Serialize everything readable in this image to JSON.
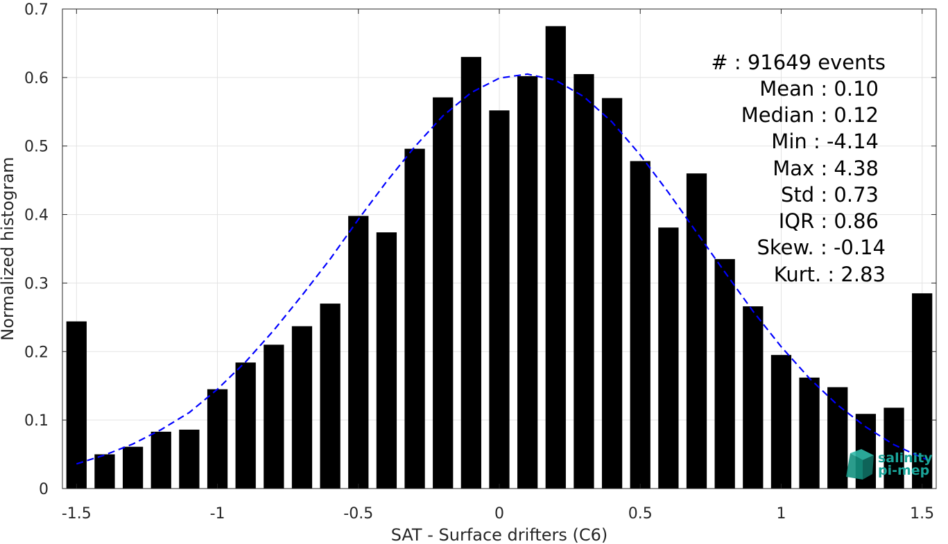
{
  "chart_data": {
    "type": "bar",
    "xlabel": "SAT - Surface drifters (C6)",
    "ylabel": "Normalized histogram",
    "xlim": [
      -1.55,
      1.55
    ],
    "ylim": [
      0,
      0.7
    ],
    "xticks": [
      -1.5,
      -1,
      -0.5,
      0,
      0.5,
      1,
      1.5
    ],
    "xtick_labels": [
      "-1.5",
      "-1",
      "-0.5",
      "0",
      "0.5",
      "1",
      "1.5"
    ],
    "yticks": [
      0,
      0.1,
      0.2,
      0.3,
      0.4,
      0.5,
      0.6,
      0.7
    ],
    "ytick_labels": [
      "0",
      "0.1",
      "0.2",
      "0.3",
      "0.4",
      "0.5",
      "0.6",
      "0.7"
    ],
    "grid": true,
    "bar_color": "#000000",
    "curve_color": "#0000ff",
    "x": [
      -1.5,
      -1.4,
      -1.3,
      -1.2,
      -1.1,
      -1.0,
      -0.9,
      -0.8,
      -0.7,
      -0.6,
      -0.5,
      -0.4,
      -0.3,
      -0.2,
      -0.1,
      0.0,
      0.1,
      0.2,
      0.3,
      0.4,
      0.5,
      0.6,
      0.7,
      0.8,
      0.9,
      1.0,
      1.1,
      1.2,
      1.3,
      1.4,
      1.5
    ],
    "values": [
      0.244,
      0.05,
      0.061,
      0.083,
      0.086,
      0.145,
      0.184,
      0.21,
      0.237,
      0.27,
      0.398,
      0.374,
      0.496,
      0.571,
      0.63,
      0.552,
      0.602,
      0.675,
      0.605,
      0.57,
      0.478,
      0.381,
      0.46,
      0.335,
      0.266,
      0.195,
      0.162,
      0.148,
      0.109,
      0.118,
      0.285
    ],
    "fit_curve": {
      "style": "dashed",
      "x": [
        -1.5,
        -1.4,
        -1.3,
        -1.2,
        -1.1,
        -1.0,
        -0.9,
        -0.8,
        -0.7,
        -0.6,
        -0.5,
        -0.4,
        -0.3,
        -0.2,
        -0.1,
        0.0,
        0.1,
        0.2,
        0.3,
        0.4,
        0.5,
        0.6,
        0.7,
        0.8,
        0.9,
        1.0,
        1.1,
        1.2,
        1.3,
        1.4,
        1.5,
        1.52
      ],
      "y": [
        0.036,
        0.049,
        0.065,
        0.086,
        0.111,
        0.145,
        0.185,
        0.231,
        0.282,
        0.335,
        0.393,
        0.448,
        0.499,
        0.544,
        0.578,
        0.599,
        0.605,
        0.596,
        0.572,
        0.535,
        0.487,
        0.432,
        0.374,
        0.316,
        0.259,
        0.207,
        0.161,
        0.122,
        0.09,
        0.064,
        0.045,
        0.042
      ]
    }
  },
  "stats": [
    {
      "label": "#  : 91649 events"
    },
    {
      "label": "Mean : 0.10"
    },
    {
      "label": "Median : 0.12"
    },
    {
      "label": "Min : -4.14"
    },
    {
      "label": "Max : 4.38"
    },
    {
      "label": "Std : 0.73"
    },
    {
      "label": "IQR : 0.86"
    },
    {
      "label": "Skew. : -0.14"
    },
    {
      "label": "Kurt. : 2.83"
    }
  ],
  "logo": {
    "line1": "salinity",
    "line2": "pi-mep",
    "color": "#1aa59a"
  }
}
